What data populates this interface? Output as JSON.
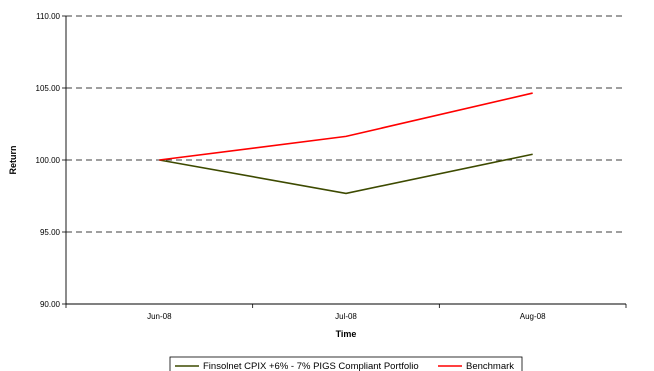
{
  "chart_data": {
    "type": "line",
    "categories": [
      "Jun-08",
      "Jul-08",
      "Aug-08"
    ],
    "series": [
      {
        "name": "Finsolnet CPIX +6% - 7% PIGS Compliant Portfolio",
        "color": "#3d4a00",
        "values": [
          100.0,
          97.68,
          100.4
        ]
      },
      {
        "name": "Benchmark",
        "color": "#ff0000",
        "values": [
          100.0,
          101.64,
          104.65
        ]
      }
    ],
    "xlabel": "Time",
    "ylabel": "Return",
    "ylim": [
      90,
      110
    ],
    "yticks": [
      "90.00",
      "95.00",
      "100.00",
      "105.00",
      "110.00"
    ],
    "ytick_values": [
      90,
      95,
      100,
      105,
      110
    ],
    "grid": "dashed-horizontal",
    "legend_position": "bottom"
  }
}
